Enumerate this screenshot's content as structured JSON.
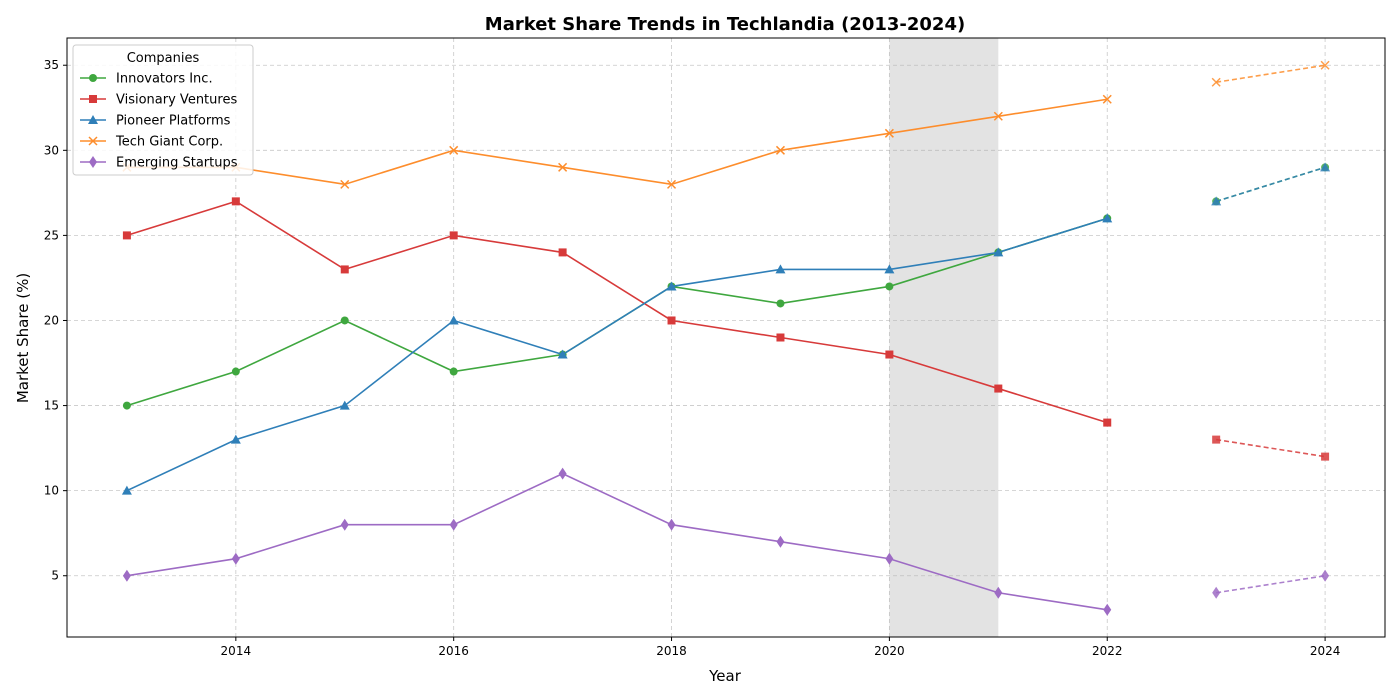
{
  "chart_data": {
    "type": "line",
    "title": "Market Share Trends in Techlandia (2013-2024)",
    "xlabel": "Year",
    "ylabel": "Market Share (%)",
    "xlim": [
      2012.45,
      2024.55
    ],
    "ylim": [
      1.4,
      36.6
    ],
    "x_ticks": [
      2014,
      2016,
      2018,
      2020,
      2022,
      2024
    ],
    "y_ticks": [
      5,
      10,
      15,
      20,
      25,
      30,
      35
    ],
    "grid": true,
    "grid_style": "dashed",
    "legend": {
      "title": "Companies",
      "position": "top-left"
    },
    "shaded_region": {
      "x": [
        2020,
        2021
      ],
      "color": "#e3e3e3"
    },
    "observed_x": [
      2013,
      2014,
      2015,
      2016,
      2017,
      2018,
      2019,
      2020,
      2021,
      2022
    ],
    "projected_x": [
      2023,
      2024
    ],
    "projection_style": "dashed",
    "series": [
      {
        "name": "Innovators Inc.",
        "color": "#3fa73f",
        "marker": "circle",
        "values": [
          15,
          17,
          20,
          17,
          18,
          22,
          21,
          22,
          24,
          26
        ],
        "projected": [
          27,
          29
        ]
      },
      {
        "name": "Visionary Ventures",
        "color": "#d73a3a",
        "marker": "square",
        "values": [
          25,
          27,
          23,
          25,
          24,
          20,
          19,
          18,
          16,
          14
        ],
        "projected": [
          13,
          12
        ]
      },
      {
        "name": "Pioneer Platforms",
        "color": "#2f7fb8",
        "marker": "triangle",
        "values": [
          10,
          13,
          15,
          20,
          18,
          22,
          23,
          23,
          24,
          26
        ],
        "projected": [
          27,
          29
        ]
      },
      {
        "name": "Tech Giant Corp.",
        "color": "#fd8d2c",
        "marker": "x",
        "values": [
          29,
          29,
          28,
          30,
          29,
          28,
          30,
          31,
          32,
          33
        ],
        "projected": [
          34,
          35
        ]
      },
      {
        "name": "Emerging Startups",
        "color": "#9d6bc4",
        "marker": "diamond",
        "values": [
          5,
          6,
          8,
          8,
          11,
          8,
          7,
          6,
          4,
          3
        ],
        "projected": [
          4,
          5
        ]
      }
    ]
  }
}
